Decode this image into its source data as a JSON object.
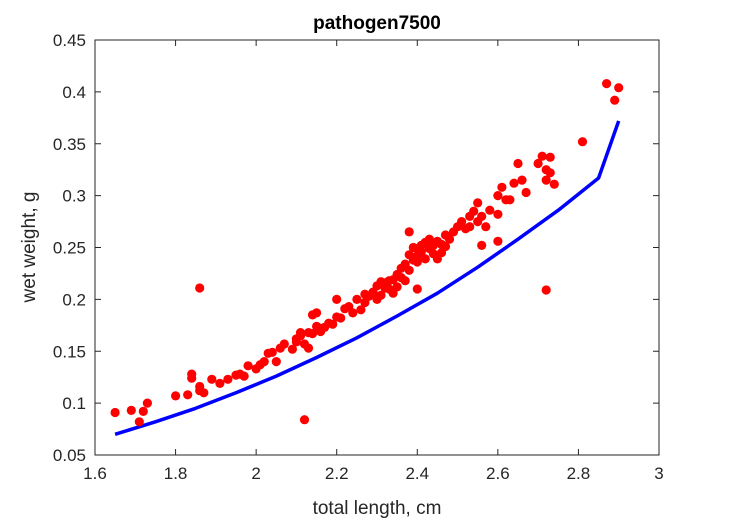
{
  "chart_data": {
    "type": "scatter",
    "title": "pathogen7500",
    "xlabel": "total length, cm",
    "ylabel": "wet weight, g",
    "xlim": [
      1.6,
      3
    ],
    "ylim": [
      0.05,
      0.45
    ],
    "xticks": [
      "1.6",
      "1.8",
      "2",
      "2.2",
      "2.4",
      "2.6",
      "2.8",
      "3"
    ],
    "yticks": [
      "0.05",
      "0.1",
      "0.15",
      "0.2",
      "0.25",
      "0.3",
      "0.35",
      "0.4",
      "0.45"
    ],
    "grid": false,
    "legend": "none",
    "colors": {
      "points": "#ff0000",
      "fit": "#0000ff",
      "axes": "#262626"
    },
    "series": [
      {
        "kind": "points",
        "x": [
          1.65,
          1.69,
          1.71,
          1.72,
          1.73,
          1.8,
          1.83,
          1.84,
          1.84,
          1.86,
          1.86,
          1.87,
          1.89,
          1.91,
          1.93,
          1.95,
          1.96,
          1.97,
          1.98,
          2.0,
          2.01,
          2.02,
          2.03,
          2.04,
          2.05,
          2.06,
          2.07,
          2.09,
          2.1,
          2.1,
          2.11,
          2.11,
          2.12,
          2.13,
          2.13,
          2.14,
          2.14,
          2.15,
          2.15,
          2.16,
          2.16,
          2.17,
          2.18,
          2.19,
          2.2,
          2.2,
          2.21,
          2.22,
          2.23,
          2.24,
          2.25,
          2.26,
          2.27,
          2.27,
          2.28,
          2.29,
          2.3,
          2.3,
          2.31,
          2.31,
          2.32,
          2.32,
          2.33,
          2.33,
          2.34,
          2.34,
          2.35,
          2.35,
          2.36,
          2.36,
          2.37,
          2.37,
          2.38,
          2.38,
          2.39,
          2.39,
          2.4,
          2.4,
          2.4,
          2.41,
          2.41,
          2.42,
          2.42,
          2.43,
          2.43,
          2.44,
          2.44,
          2.45,
          2.45,
          2.46,
          2.46,
          2.47,
          2.47,
          2.48,
          2.49,
          2.5,
          2.51,
          2.52,
          2.53,
          2.53,
          2.54,
          2.55,
          2.55,
          2.56,
          2.57,
          2.58,
          2.6,
          2.6,
          2.61,
          2.62,
          2.63,
          2.64,
          2.65,
          2.66,
          2.67,
          2.7,
          2.71,
          2.72,
          2.72,
          2.73,
          2.73,
          2.74,
          2.81,
          2.87,
          2.89,
          2.9,
          1.86,
          2.12,
          2.72,
          2.4,
          2.56,
          2.6,
          2.38
        ],
        "y": [
          0.091,
          0.093,
          0.082,
          0.092,
          0.1,
          0.107,
          0.108,
          0.128,
          0.124,
          0.116,
          0.112,
          0.11,
          0.123,
          0.119,
          0.123,
          0.127,
          0.128,
          0.126,
          0.136,
          0.133,
          0.137,
          0.14,
          0.148,
          0.149,
          0.14,
          0.153,
          0.157,
          0.152,
          0.159,
          0.162,
          0.168,
          0.165,
          0.157,
          0.153,
          0.168,
          0.167,
          0.185,
          0.174,
          0.187,
          0.172,
          0.169,
          0.173,
          0.177,
          0.176,
          0.2,
          0.183,
          0.182,
          0.191,
          0.193,
          0.187,
          0.2,
          0.19,
          0.197,
          0.205,
          0.203,
          0.207,
          0.213,
          0.2,
          0.217,
          0.204,
          0.216,
          0.211,
          0.218,
          0.21,
          0.219,
          0.206,
          0.224,
          0.212,
          0.23,
          0.221,
          0.234,
          0.218,
          0.243,
          0.228,
          0.238,
          0.25,
          0.249,
          0.242,
          0.236,
          0.252,
          0.246,
          0.255,
          0.239,
          0.249,
          0.258,
          0.244,
          0.252,
          0.256,
          0.239,
          0.253,
          0.245,
          0.262,
          0.251,
          0.258,
          0.265,
          0.27,
          0.275,
          0.268,
          0.28,
          0.27,
          0.285,
          0.293,
          0.275,
          0.28,
          0.27,
          0.286,
          0.3,
          0.282,
          0.308,
          0.296,
          0.296,
          0.312,
          0.331,
          0.315,
          0.303,
          0.331,
          0.338,
          0.325,
          0.315,
          0.322,
          0.337,
          0.311,
          0.352,
          0.408,
          0.392,
          0.404,
          0.211,
          0.084,
          0.209,
          0.21,
          0.252,
          0.256,
          0.265
        ]
      },
      {
        "kind": "fit-line",
        "x": [
          1.65,
          1.75,
          1.85,
          1.95,
          2.05,
          2.15,
          2.25,
          2.35,
          2.45,
          2.55,
          2.65,
          2.75,
          2.85,
          2.9
        ],
        "y": [
          0.07,
          0.082,
          0.095,
          0.11,
          0.126,
          0.144,
          0.163,
          0.184,
          0.206,
          0.231,
          0.258,
          0.286,
          0.317,
          0.372
        ]
      }
    ]
  }
}
